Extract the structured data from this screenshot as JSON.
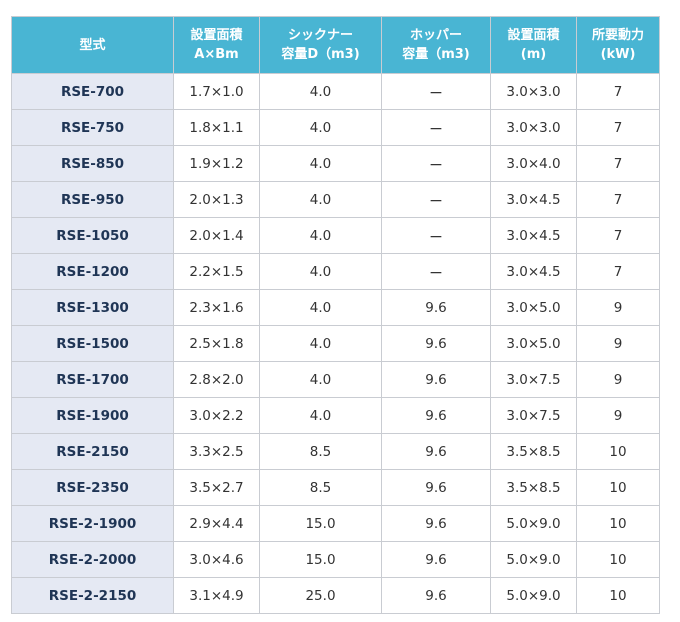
{
  "table": {
    "headers": [
      {
        "lines": [
          "型式"
        ]
      },
      {
        "lines": [
          "設置面積",
          "A×Bm"
        ]
      },
      {
        "lines": [
          "シックナー",
          "容量D（m3)"
        ]
      },
      {
        "lines": [
          "ホッパー",
          "容量（m3)"
        ]
      },
      {
        "lines": [
          "設置面積",
          "(m)"
        ]
      },
      {
        "lines": [
          "所要動力",
          "(kW)"
        ]
      }
    ],
    "rows": [
      [
        "RSE-700",
        "1.7×1.0",
        "4.0",
        "ー",
        "3.0×3.0",
        "7"
      ],
      [
        "RSE-750",
        "1.8×1.1",
        "4.0",
        "ー",
        "3.0×3.0",
        "7"
      ],
      [
        "RSE-850",
        "1.9×1.2",
        "4.0",
        "ー",
        "3.0×4.0",
        "7"
      ],
      [
        "RSE-950",
        "2.0×1.3",
        "4.0",
        "ー",
        "3.0×4.5",
        "7"
      ],
      [
        "RSE-1050",
        "2.0×1.4",
        "4.0",
        "ー",
        "3.0×4.5",
        "7"
      ],
      [
        "RSE-1200",
        "2.2×1.5",
        "4.0",
        "ー",
        "3.0×4.5",
        "7"
      ],
      [
        "RSE-1300",
        "2.3×1.6",
        "4.0",
        "9.6",
        "3.0×5.0",
        "9"
      ],
      [
        "RSE-1500",
        "2.5×1.8",
        "4.0",
        "9.6",
        "3.0×5.0",
        "9"
      ],
      [
        "RSE-1700",
        "2.8×2.0",
        "4.0",
        "9.6",
        "3.0×7.5",
        "9"
      ],
      [
        "RSE-1900",
        "3.0×2.2",
        "4.0",
        "9.6",
        "3.0×7.5",
        "9"
      ],
      [
        "RSE-2150",
        "3.3×2.5",
        "8.5",
        "9.6",
        "3.5×8.5",
        "10"
      ],
      [
        "RSE-2350",
        "3.5×2.7",
        "8.5",
        "9.6",
        "3.5×8.5",
        "10"
      ],
      [
        "RSE-2-1900",
        "2.9×4.4",
        "15.0",
        "9.6",
        "5.0×9.0",
        "10"
      ],
      [
        "RSE-2-2000",
        "3.0×4.6",
        "15.0",
        "9.6",
        "5.0×9.0",
        "10"
      ],
      [
        "RSE-2-2150",
        "3.1×4.9",
        "25.0",
        "9.6",
        "5.0×9.0",
        "10"
      ]
    ]
  }
}
